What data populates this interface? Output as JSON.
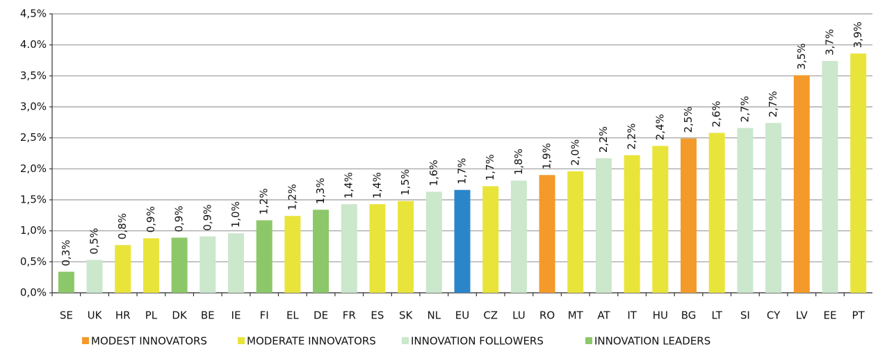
{
  "chart_data": {
    "type": "bar",
    "categories": [
      "SE",
      "UK",
      "HR",
      "PL",
      "DK",
      "BE",
      "IE",
      "FI",
      "EL",
      "DE",
      "FR",
      "ES",
      "SK",
      "NL",
      "EU",
      "CZ",
      "LU",
      "RO",
      "MT",
      "AT",
      "IT",
      "HU",
      "BG",
      "LT",
      "SI",
      "CY",
      "LV",
      "EE",
      "PT"
    ],
    "values": [
      0.34,
      0.53,
      0.77,
      0.88,
      0.89,
      0.91,
      0.96,
      1.17,
      1.24,
      1.34,
      1.43,
      1.43,
      1.48,
      1.63,
      1.66,
      1.72,
      1.81,
      1.9,
      1.96,
      2.17,
      2.22,
      2.37,
      2.49,
      2.58,
      2.66,
      2.74,
      3.51,
      3.74,
      3.86
    ],
    "value_labels": [
      "0,3%",
      "0,5%",
      "0,8%",
      "0,9%",
      "0,9%",
      "0,9%",
      "1,0%",
      "1,2%",
      "1,2%",
      "1,3%",
      "1,4%",
      "1,4%",
      "1,5%",
      "1,6%",
      "1,7%",
      "1,7%",
      "1,8%",
      "1,9%",
      "2,0%",
      "2,2%",
      "2,2%",
      "2,4%",
      "2,5%",
      "2,6%",
      "2,7%",
      "2,7%",
      "3,5%",
      "3,7%",
      "3,9%"
    ],
    "colors": [
      "#8cc86a",
      "#cbe7cc",
      "#e9e43a",
      "#e9e43a",
      "#8cc86a",
      "#cbe7cc",
      "#cbe7cc",
      "#8cc86a",
      "#e9e43a",
      "#8cc86a",
      "#cbe7cc",
      "#e9e43a",
      "#e9e43a",
      "#cbe7cc",
      "#2b86c9",
      "#e9e43a",
      "#cbe7cc",
      "#f39a2b",
      "#e9e43a",
      "#cbe7cc",
      "#e9e43a",
      "#e9e43a",
      "#f39a2b",
      "#e9e43a",
      "#cbe7cc",
      "#cbe7cc",
      "#f39a2b",
      "#cbe7cc",
      "#e9e43a"
    ],
    "legend": [
      {
        "name": "MODEST INNOVATORS",
        "color": "#f39a2b"
      },
      {
        "name": "MODERATE INNOVATORS",
        "color": "#e9e43a"
      },
      {
        "name": "INNOVATION FOLLOWERS",
        "color": "#cbe7cc"
      },
      {
        "name": "INNOVATION LEADERS",
        "color": "#8cc86a"
      }
    ],
    "ylim": [
      0,
      4.5
    ],
    "yticks": [
      {
        "value": 0,
        "label": "0,0%"
      },
      {
        "value": 0.5,
        "label": "0,5%"
      },
      {
        "value": 1,
        "label": "1,0%"
      },
      {
        "value": 1.5,
        "label": "1,5%"
      },
      {
        "value": 2,
        "label": "2,0%"
      },
      {
        "value": 2.5,
        "label": "2,5%"
      },
      {
        "value": 3,
        "label": "3,0%"
      },
      {
        "value": 3.5,
        "label": "3,5%"
      },
      {
        "value": 4,
        "label": "4.0%"
      },
      {
        "value": 4.5,
        "label": "4,5%"
      }
    ],
    "grid": true
  }
}
